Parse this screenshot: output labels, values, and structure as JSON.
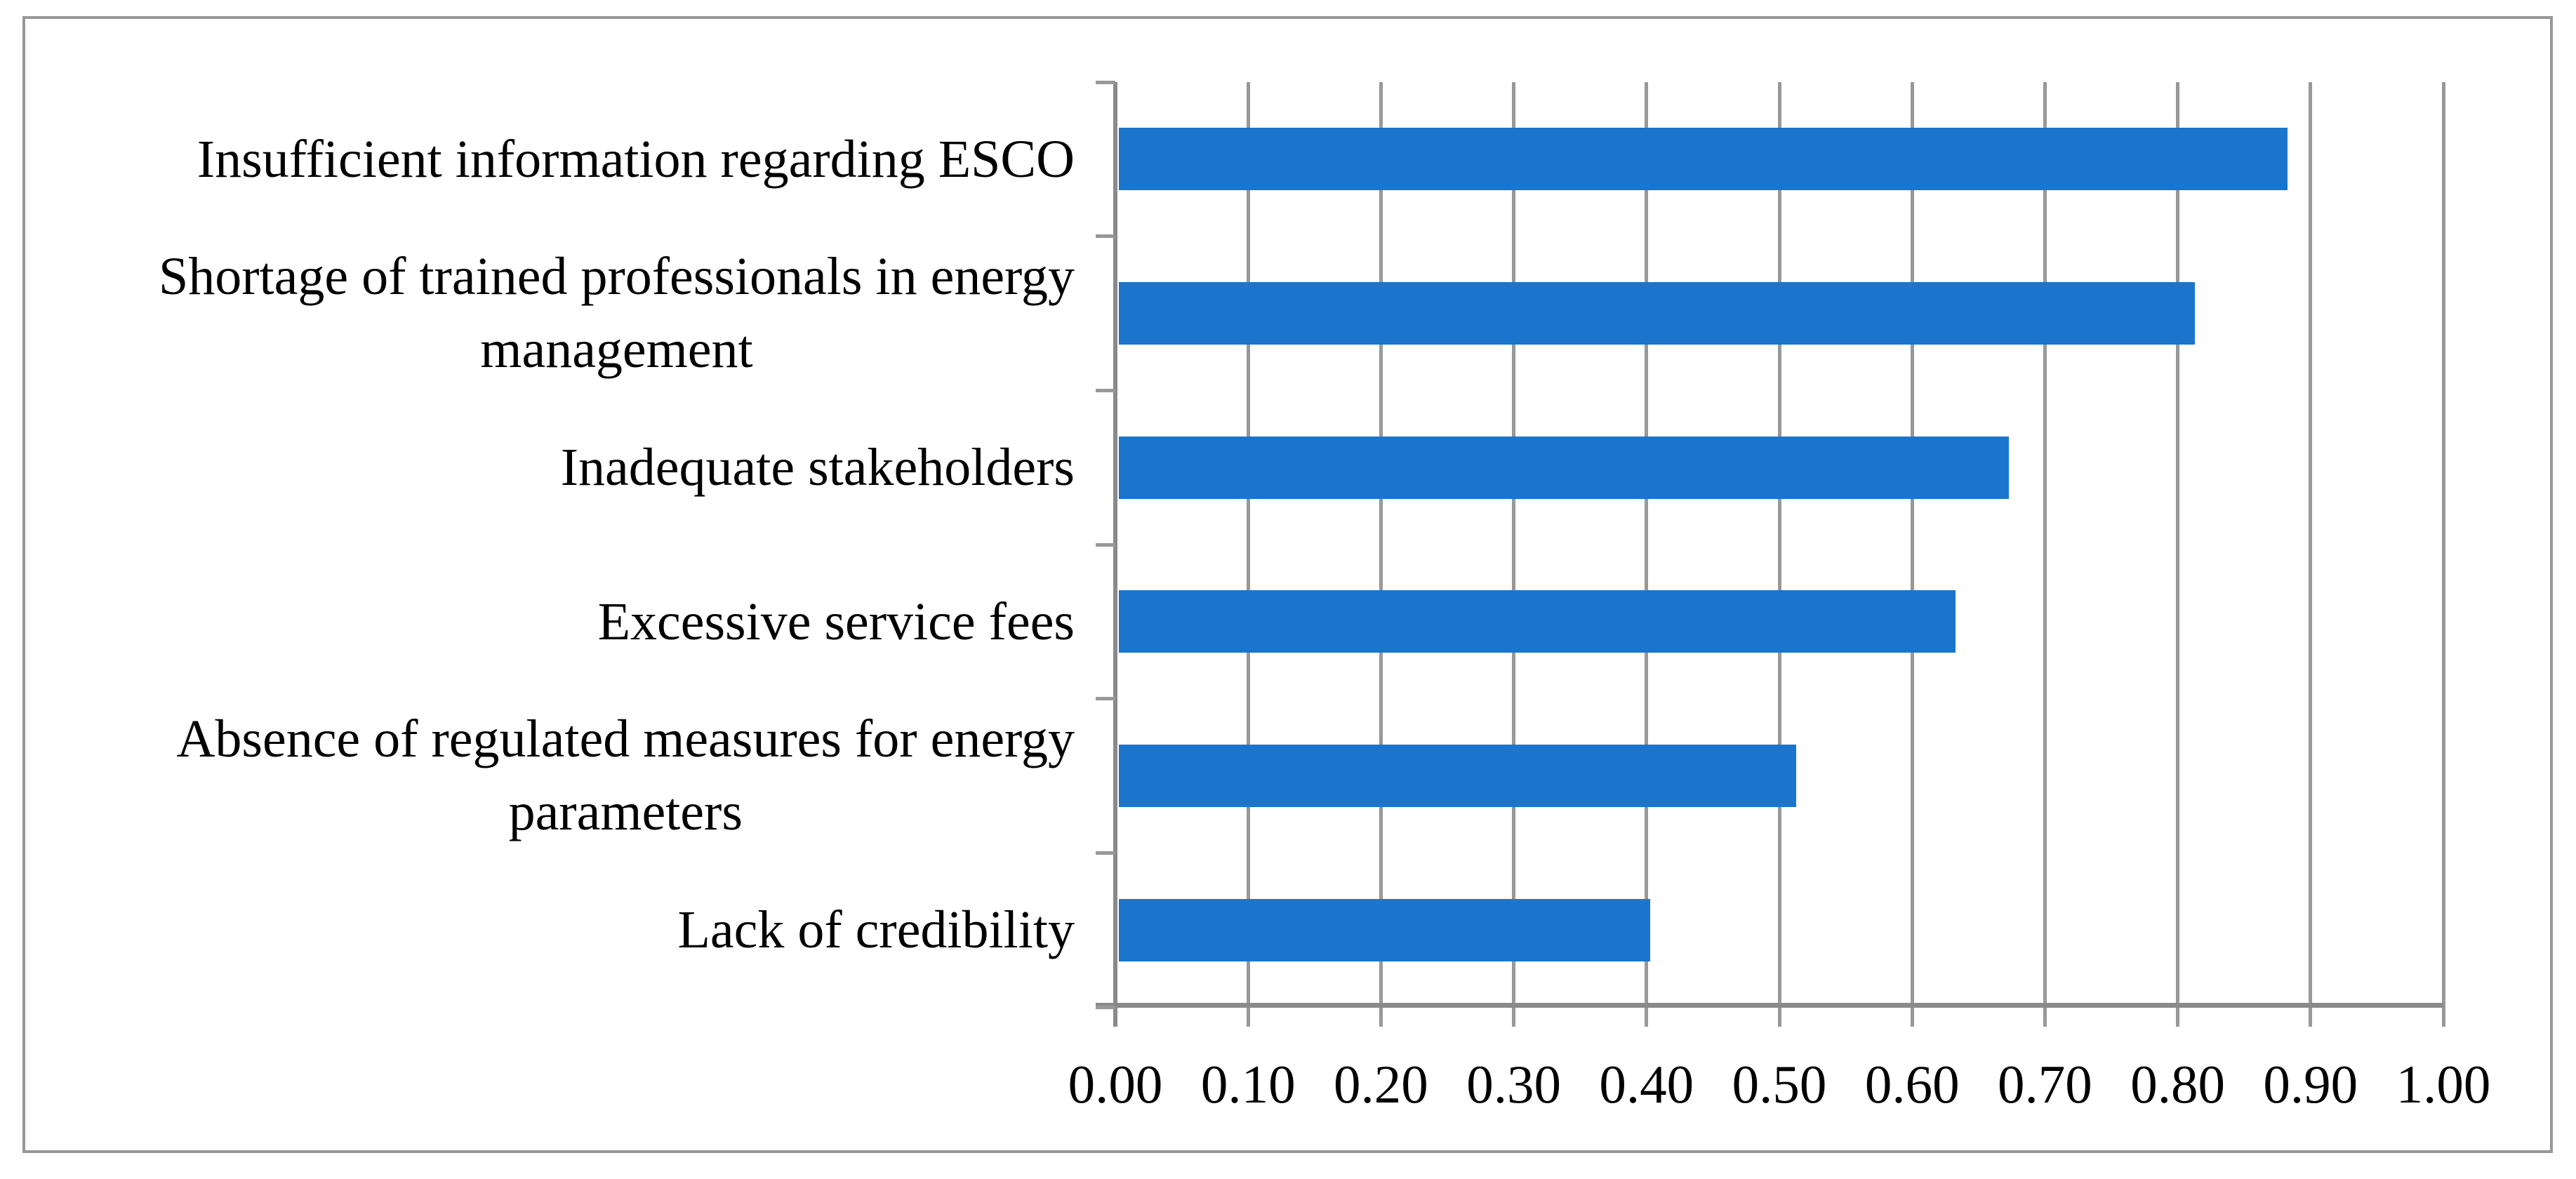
{
  "figure": {
    "background": "#ffffff",
    "border_color": "#979797",
    "axis_color": "#8a8a8a",
    "gridline_color": "#989898",
    "text_color": "#000000"
  },
  "chart_data": {
    "type": "bar",
    "orientation": "horizontal",
    "title": "",
    "xlabel": "",
    "ylabel": "",
    "xlim": [
      0.0,
      1.0
    ],
    "x_tick_interval": 0.1,
    "x_tick_labels": [
      "0.00",
      "0.10",
      "0.20",
      "0.30",
      "0.40",
      "0.50",
      "0.60",
      "0.70",
      "0.80",
      "0.90",
      "1.00"
    ],
    "grid": true,
    "legend": false,
    "bar_color": "#1B75CD",
    "categories": [
      "Insufficient information regarding ESCO",
      "Shortage of trained professionals in energy\nmanagement",
      "Inadequate stakeholders",
      "Excessive service fees",
      "Absence of regulated measures for energy\nparameters",
      "Lack of credibility"
    ],
    "values": [
      0.88,
      0.81,
      0.67,
      0.63,
      0.51,
      0.4
    ]
  }
}
